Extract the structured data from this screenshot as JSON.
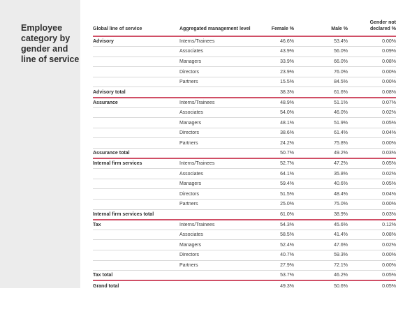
{
  "page": {
    "title": "Employee category by gender and line of service"
  },
  "colors": {
    "accent_red": "#d04f66",
    "row_line": "#d9d9d9",
    "sidebar_bg": "#ececec"
  },
  "table": {
    "columns": [
      "Global line of service",
      "Aggregated management level",
      "Female %",
      "Male %",
      "Gender not declared %"
    ],
    "sections": [
      {
        "name": "Advisory",
        "rows": [
          {
            "level": "Interns/Trainees",
            "female": "46.6%",
            "male": "53.4%",
            "not_declared": "0.00%"
          },
          {
            "level": "Associates",
            "female": "43.9%",
            "male": "56.0%",
            "not_declared": "0.09%"
          },
          {
            "level": "Managers",
            "female": "33.9%",
            "male": "66.0%",
            "not_declared": "0.08%"
          },
          {
            "level": "Directors",
            "female": "23.9%",
            "male": "76.0%",
            "not_declared": "0.00%"
          },
          {
            "level": "Partners",
            "female": "15.5%",
            "male": "84.5%",
            "not_declared": "0.00%"
          }
        ],
        "total": {
          "label": "Advisory total",
          "female": "38.3%",
          "male": "61.6%",
          "not_declared": "0.08%"
        }
      },
      {
        "name": "Assurance",
        "rows": [
          {
            "level": "Interns/Trainees",
            "female": "48.9%",
            "male": "51.1%",
            "not_declared": "0.07%"
          },
          {
            "level": "Associates",
            "female": "54.0%",
            "male": "46.0%",
            "not_declared": "0.02%"
          },
          {
            "level": "Managers",
            "female": "48.1%",
            "male": "51.9%",
            "not_declared": "0.05%"
          },
          {
            "level": "Directors",
            "female": "38.6%",
            "male": "61.4%",
            "not_declared": "0.04%"
          },
          {
            "level": "Partners",
            "female": "24.2%",
            "male": "75.8%",
            "not_declared": "0.00%"
          }
        ],
        "total": {
          "label": "Assurance total",
          "female": "50.7%",
          "male": "49.2%",
          "not_declared": "0.03%"
        }
      },
      {
        "name": "Internal firm services",
        "rows": [
          {
            "level": "Interns/Trainees",
            "female": "52.7%",
            "male": "47.2%",
            "not_declared": "0.05%"
          },
          {
            "level": "Associates",
            "female": "64.1%",
            "male": "35.8%",
            "not_declared": "0.02%"
          },
          {
            "level": "Managers",
            "female": "59.4%",
            "male": "40.6%",
            "not_declared": "0.05%"
          },
          {
            "level": "Directors",
            "female": "51.5%",
            "male": "48.4%",
            "not_declared": "0.04%"
          },
          {
            "level": "Partners",
            "female": "25.0%",
            "male": "75.0%",
            "not_declared": "0.00%"
          }
        ],
        "total": {
          "label": "Internal firm services total",
          "female": "61.0%",
          "male": "38.9%",
          "not_declared": "0.03%"
        }
      },
      {
        "name": "Tax",
        "rows": [
          {
            "level": "Interns/Trainees",
            "female": "54.3%",
            "male": "45.6%",
            "not_declared": "0.12%"
          },
          {
            "level": "Associates",
            "female": "58.5%",
            "male": "41.4%",
            "not_declared": "0.08%"
          },
          {
            "level": "Managers",
            "female": "52.4%",
            "male": "47.6%",
            "not_declared": "0.02%"
          },
          {
            "level": "Directors",
            "female": "40.7%",
            "male": "59.3%",
            "not_declared": "0.00%"
          },
          {
            "level": "Partners",
            "female": "27.9%",
            "male": "72.1%",
            "not_declared": "0.00%"
          }
        ],
        "total": {
          "label": "Tax total",
          "female": "53.7%",
          "male": "46.2%",
          "not_declared": "0.05%"
        }
      }
    ],
    "grand_total": {
      "label": "Grand total",
      "female": "49.3%",
      "male": "50.6%",
      "not_declared": "0.05%"
    }
  }
}
